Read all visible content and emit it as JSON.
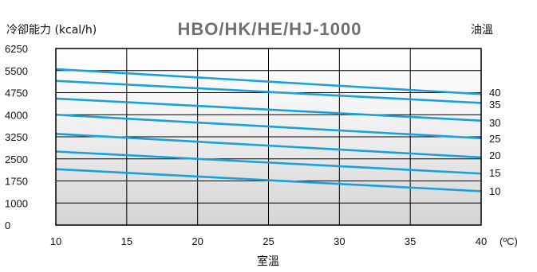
{
  "chart_data": {
    "type": "line",
    "title": "HBO/HK/HE/HJ-1000",
    "ylabel": "冷卻能力 (kcal/h)",
    "xlabel": "室溫",
    "xunit": "(ºC)",
    "series_label": "油溫",
    "xlim": [
      10,
      40
    ],
    "ylim": [
      0,
      6250
    ],
    "x_ticks": [
      "10",
      "15",
      "20",
      "25",
      "30",
      "35",
      "40"
    ],
    "y_ticks": [
      "0",
      "1000",
      "1750",
      "2500",
      "3250",
      "4000",
      "4750",
      "5500",
      "6250"
    ],
    "grid": true,
    "line_color": "#1aa0dc",
    "series": [
      {
        "name": "40",
        "x": [
          10,
          40
        ],
        "y": [
          5550,
          4700
        ]
      },
      {
        "name": "35",
        "x": [
          10,
          40
        ],
        "y": [
          5150,
          4400
        ]
      },
      {
        "name": "30",
        "x": [
          10,
          40
        ],
        "y": [
          4550,
          3800
        ]
      },
      {
        "name": "25",
        "x": [
          10,
          40
        ],
        "y": [
          4000,
          3200
        ]
      },
      {
        "name": "20",
        "x": [
          10,
          40
        ],
        "y": [
          3350,
          2550
        ]
      },
      {
        "name": "15",
        "x": [
          10,
          40
        ],
        "y": [
          2750,
          2000
        ]
      },
      {
        "name": "10",
        "x": [
          10,
          40
        ],
        "y": [
          2150,
          1400
        ]
      }
    ]
  }
}
